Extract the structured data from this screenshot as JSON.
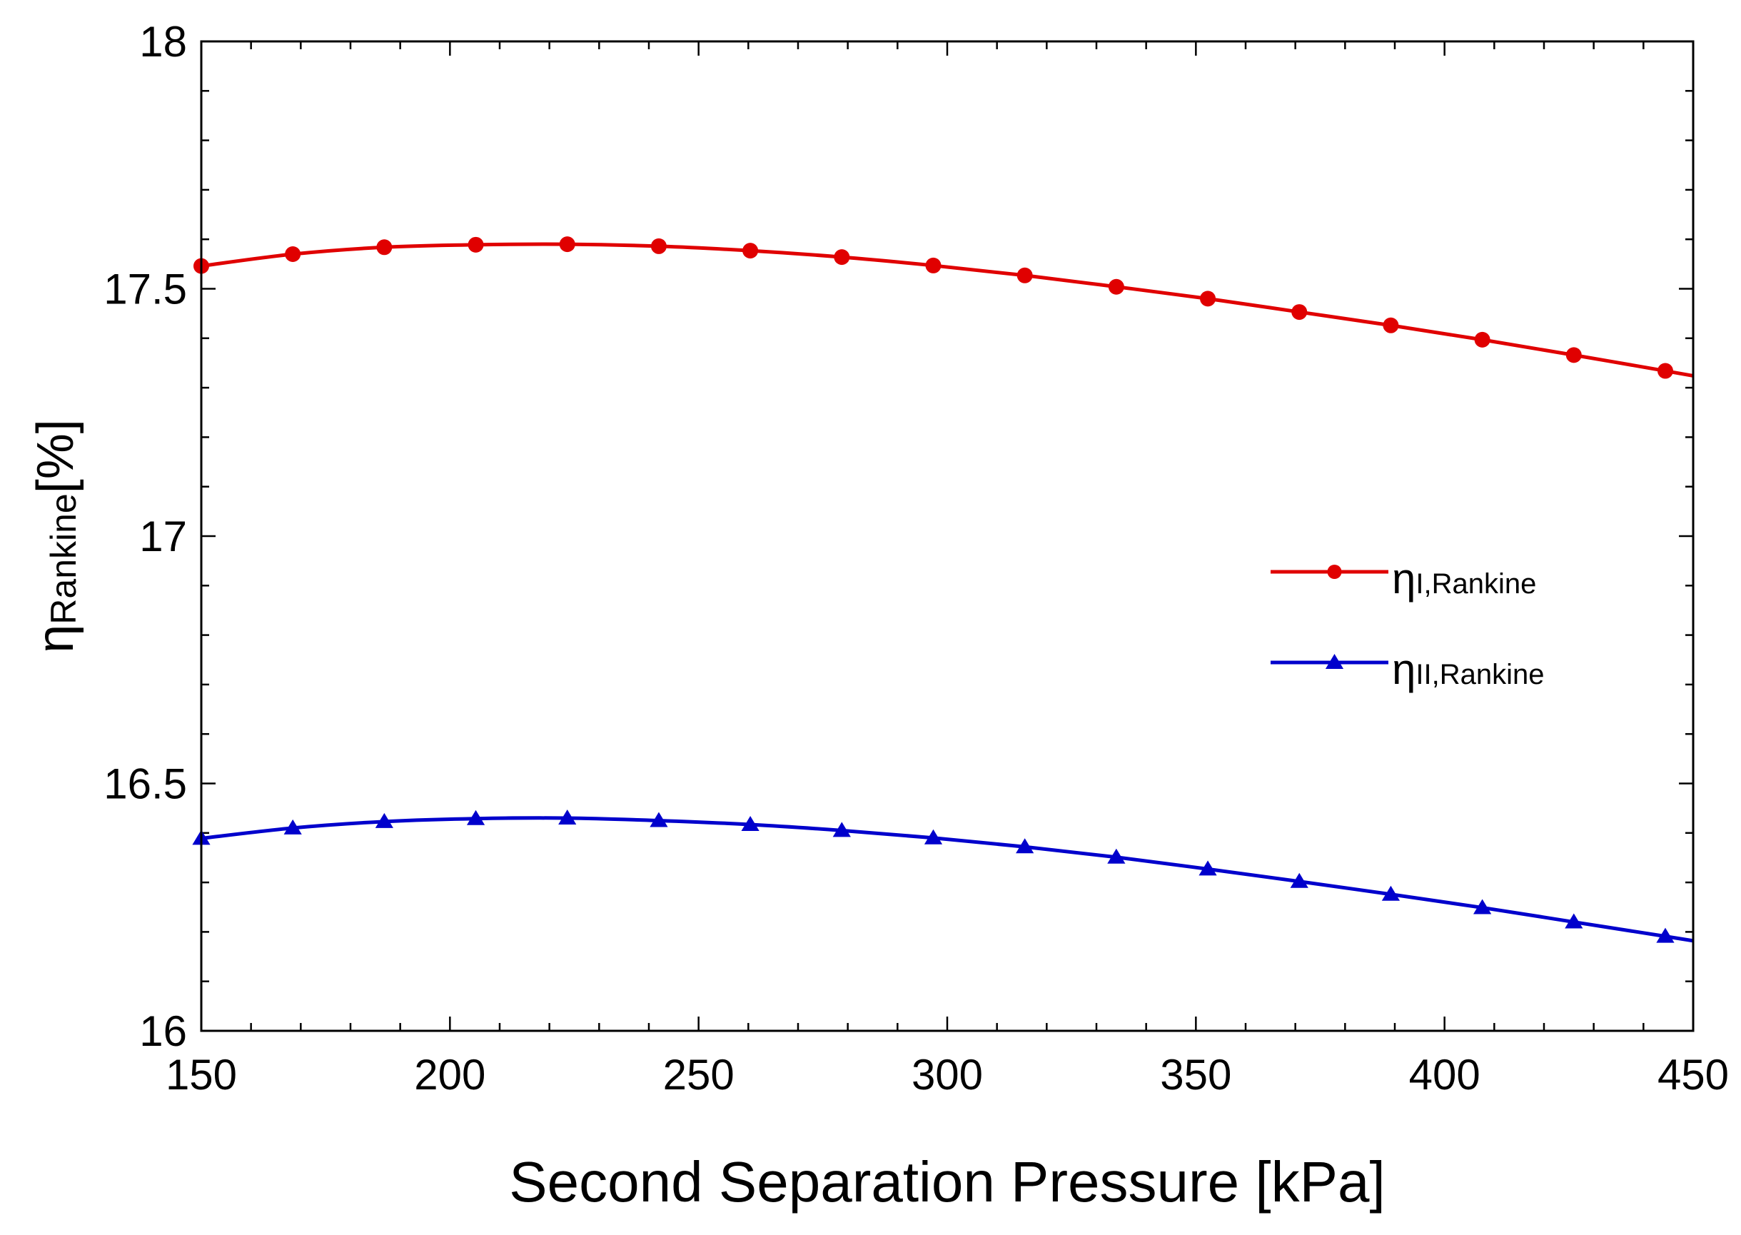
{
  "chart_data": {
    "type": "line",
    "title": "",
    "xlabel": "Second Separation Pressure [kPa]",
    "ylabel": {
      "symbol": "η",
      "subscript": "Rankine",
      "unit": "[%]"
    },
    "xlim": [
      150,
      450
    ],
    "ylim": [
      16,
      18
    ],
    "x_ticks": [
      150,
      200,
      250,
      300,
      350,
      400,
      450
    ],
    "y_ticks": [
      16,
      16.5,
      17,
      17.5,
      18
    ],
    "y_tick_labels": [
      "16",
      "16.5",
      "17",
      "17.5",
      "18"
    ],
    "grid": false,
    "legend_placement": "right",
    "series": [
      {
        "name": "ηI,Rankine",
        "name_symbol": "η",
        "name_subscript": "I,Rankine",
        "color": "#e00000",
        "marker": "circle",
        "x": [
          150,
          168.4,
          186.8,
          205.2,
          223.6,
          242,
          260.4,
          278.8,
          297.2,
          315.6,
          334,
          352.4,
          370.8,
          389.2,
          407.6,
          426,
          444.4,
          450
        ],
        "y": [
          17.546,
          17.57,
          17.584,
          17.589,
          17.59,
          17.586,
          17.577,
          17.564,
          17.547,
          17.527,
          17.504,
          17.48,
          17.453,
          17.426,
          17.397,
          17.366,
          17.334,
          17.324
        ]
      },
      {
        "name": "ηII,Rankine",
        "name_symbol": "η",
        "name_subscript": "II,Rankine",
        "color": "#0000cc",
        "marker": "triangle",
        "x": [
          150,
          168.4,
          186.8,
          205.2,
          223.6,
          242,
          260.4,
          278.8,
          297.2,
          315.6,
          334,
          352.4,
          370.8,
          389.2,
          407.6,
          426,
          444.4,
          450
        ],
        "y": [
          16.389,
          16.41,
          16.423,
          16.429,
          16.43,
          16.425,
          16.417,
          16.405,
          16.39,
          16.372,
          16.351,
          16.327,
          16.302,
          16.276,
          16.249,
          16.22,
          16.191,
          16.182
        ]
      }
    ]
  }
}
